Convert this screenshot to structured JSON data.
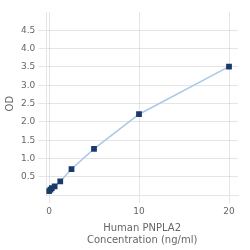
{
  "chart_data": {
    "type": "line",
    "x": [
      0,
      0.156,
      0.313,
      0.625,
      1.25,
      2.5,
      5,
      10,
      20
    ],
    "values": [
      0.108,
      0.154,
      0.191,
      0.243,
      0.377,
      0.713,
      1.266,
      2.21,
      3.51
    ],
    "xlabel": "Human PNPLA2\nConcentration (ng/ml)",
    "ylabel": "OD",
    "xlim": [
      -0.3,
      21
    ],
    "ylim": [
      0,
      5.0
    ],
    "xticks": [
      0,
      10,
      20
    ],
    "yticks": [
      0.5,
      {
        "value": 1.0,
        "label": "1.0"
      },
      1.5,
      {
        "value": 2.0,
        "label": "2.0"
      },
      2.5,
      {
        "value": 3.0,
        "label": "3.0"
      },
      3.5,
      {
        "value": 4.0,
        "label": "4.0"
      },
      4.5
    ],
    "color": "#aac8e8",
    "colors": [
      "#1b3a6b",
      "#1b3a6b",
      "#1b3a6b",
      "#1b3a6b",
      "#1b3a6b",
      "#1b3a6b",
      "#1b3a6b",
      "#1b3a6b",
      "#1b3a6b"
    ],
    "marker": "square",
    "line_style": "solid",
    "grid": true
  }
}
